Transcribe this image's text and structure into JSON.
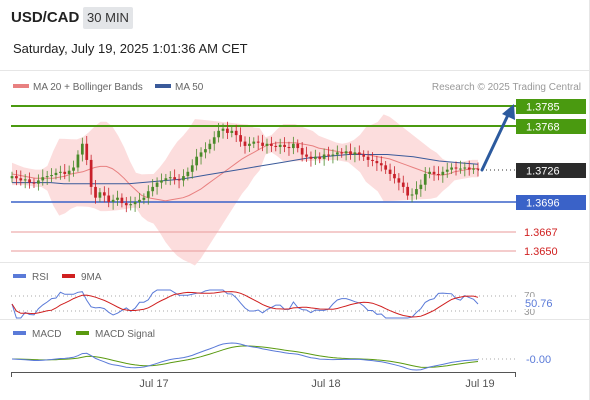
{
  "header": {
    "symbol": "USD/CAD",
    "timeframe": "30 MIN",
    "datetime": "Saturday, July 19, 2025 1:01:36 AM CET"
  },
  "legend": {
    "ma20_label": "MA 20 + Bollinger Bands",
    "ma50_label": "MA 50",
    "credit": "Research © 2025 Trading Central"
  },
  "colors": {
    "bull": "#4a8a2a",
    "bear": "#c8202a",
    "ma20": "#e88080",
    "ma50": "#3a5a9a",
    "band": "#fbd7d7",
    "green_level": "#4a9a10",
    "blue_level": "#3a62c8",
    "red_level": "#e89a9a",
    "rsi": "#5a7ad8",
    "rsi_ma": "#d02020",
    "macd": "#5a7ad8",
    "macd_signal": "#5a9a10",
    "arrow": "#2c5a9e"
  },
  "levels": {
    "r2": "1.3785",
    "r1": "1.3768",
    "current": "1.3726",
    "s1": "1.3696",
    "s2": "1.3667",
    "s3": "1.3650"
  },
  "rsi": {
    "label": "RSI",
    "ma_label": "9MA",
    "value": "50.76",
    "upper": "70",
    "lower": "30"
  },
  "macd": {
    "label": "MACD",
    "signal_label": "MACD Signal",
    "value": "-0.00"
  },
  "chart_data": {
    "type": "candlestick",
    "x_ticks": [
      "Jul 17",
      "Jul 18",
      "Jul 19"
    ],
    "price_levels": [
      1.3785,
      1.3768,
      1.3726,
      1.3696,
      1.3667,
      1.365
    ],
    "closes": [
      1.372,
      1.3718,
      1.3716,
      1.3717,
      1.3714,
      1.3713,
      1.3716,
      1.3719,
      1.372,
      1.3721,
      1.3723,
      1.3724,
      1.3722,
      1.3725,
      1.3728,
      1.374,
      1.375,
      1.3735,
      1.371,
      1.37,
      1.3705,
      1.3702,
      1.3696,
      1.3698,
      1.37,
      1.3695,
      1.3693,
      1.3694,
      1.3696,
      1.3698,
      1.37,
      1.3706,
      1.371,
      1.3714,
      1.3716,
      1.3718,
      1.3719,
      1.3717,
      1.3716,
      1.372,
      1.3724,
      1.373,
      1.3738,
      1.3742,
      1.3745,
      1.375,
      1.3756,
      1.3762,
      1.3764,
      1.376,
      1.3762,
      1.3758,
      1.3752,
      1.3748,
      1.375,
      1.3752,
      1.3751,
      1.3748,
      1.375,
      1.3748,
      1.3747,
      1.3749,
      1.3747,
      1.3746,
      1.375,
      1.3746,
      1.374,
      1.3738,
      1.3736,
      1.3738,
      1.3736,
      1.374,
      1.3739,
      1.374,
      1.3742,
      1.3741,
      1.3743,
      1.374,
      1.3742,
      1.374,
      1.3738,
      1.3735,
      1.3734,
      1.3732,
      1.373,
      1.3726,
      1.3722,
      1.3718,
      1.3714,
      1.371,
      1.3702,
      1.3703,
      1.3708,
      1.3712,
      1.3722,
      1.3724,
      1.3722,
      1.3721,
      1.3724,
      1.3726,
      1.3728,
      1.3727,
      1.3727,
      1.3728,
      1.3726,
      1.3727,
      1.3726
    ],
    "ma20": [
      1.3722,
      1.3721,
      1.372,
      1.3719,
      1.3718,
      1.3718,
      1.3718,
      1.3718,
      1.3719,
      1.372,
      1.3722,
      1.3723,
      1.3724,
      1.3726,
      1.3728,
      1.3729,
      1.3729,
      1.3727,
      1.3723,
      1.3718,
      1.3712,
      1.3707,
      1.3702,
      1.37,
      1.3699,
      1.3698,
      1.3697,
      1.3698,
      1.3699,
      1.37,
      1.3702,
      1.3705,
      1.3708,
      1.3712,
      1.3716,
      1.372,
      1.3724,
      1.3728,
      1.3732,
      1.3736,
      1.3739,
      1.3742,
      1.3745,
      1.3748,
      1.375,
      1.3751,
      1.3751,
      1.3751,
      1.3751,
      1.375,
      1.3749,
      1.3748,
      1.3746,
      1.3745,
      1.3744,
      1.3743,
      1.3742,
      1.3742,
      1.3741,
      1.3741,
      1.374,
      1.3739,
      1.3738,
      1.3737,
      1.3736,
      1.3734,
      1.3732,
      1.373,
      1.3728,
      1.3726,
      1.3724,
      1.3722,
      1.3721,
      1.3721,
      1.3722,
      1.3724,
      1.3725,
      1.3726,
      1.3727,
      1.3727
    ],
    "ma50": [
      1.3714,
      1.3714,
      1.3714,
      1.3714,
      1.3713,
      1.3713,
      1.3713,
      1.3713,
      1.3713,
      1.3713,
      1.3714,
      1.3715,
      1.3716,
      1.3717,
      1.3719,
      1.3721,
      1.3723,
      1.3725,
      1.3727,
      1.3729,
      1.3731,
      1.3733,
      1.3735,
      1.3737,
      1.3738,
      1.3739,
      1.374,
      1.374,
      1.374,
      1.374,
      1.3739,
      1.3738,
      1.3736,
      1.3734,
      1.3733,
      1.3732,
      1.3731
    ]
  }
}
